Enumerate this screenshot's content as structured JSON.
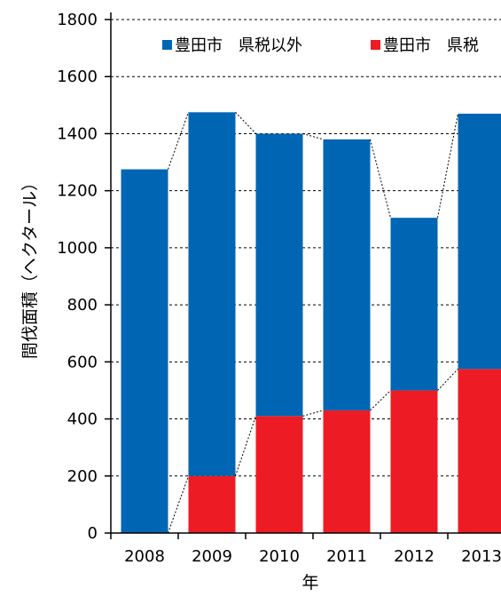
{
  "chart_data": {
    "type": "bar",
    "stacked": true,
    "categories": [
      "2008",
      "2009",
      "2010",
      "2011",
      "2012",
      "2013"
    ],
    "series": [
      {
        "name": "豊田市　県税",
        "color": "#ED1C24",
        "values": [
          0,
          200,
          410,
          430,
          500,
          575
        ]
      },
      {
        "name": "豊田市　県税以外",
        "color": "#0066B3",
        "values": [
          1275,
          1275,
          990,
          950,
          605,
          895
        ]
      }
    ],
    "totals": [
      1275,
      1475,
      1400,
      1380,
      1105,
      1470
    ],
    "xlabel": "年",
    "ylabel": "間伐面積（ヘクタール）",
    "ylim": [
      0,
      1800
    ],
    "yticks": [
      "0",
      "200",
      "400",
      "600",
      "800",
      "1000",
      "1200",
      "1400",
      "1600",
      "1800"
    ],
    "grid": "horizontal dashed",
    "series_lines": "dashed connectors between bar tops and stack boundaries",
    "legend_position": "top"
  }
}
